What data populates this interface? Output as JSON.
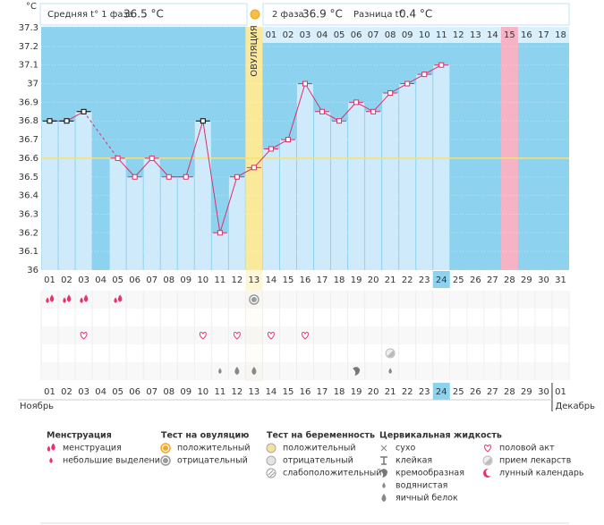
{
  "header": {
    "phase1_label": "Средняя t° 1 фаза",
    "phase1_value": "36.5 °C",
    "phase2_label": "2 фаза",
    "phase2_value": "36.9 °C",
    "diff_label": "Разница t°",
    "diff_value": "0.4 °C"
  },
  "chart_data": {
    "type": "line",
    "y_label": "°C",
    "ylim": [
      36,
      37.3
    ],
    "yticks": [
      36,
      36.1,
      36.2,
      36.3,
      36.4,
      36.5,
      36.6,
      36.7,
      36.8,
      36.9,
      37,
      37.1,
      37.2,
      37.3
    ],
    "categories": [
      "01",
      "02",
      "03",
      "04",
      "05",
      "06",
      "07",
      "08",
      "09",
      "10",
      "11",
      "12",
      "13",
      "14",
      "15",
      "16",
      "17",
      "18",
      "19",
      "20",
      "21",
      "22",
      "23",
      "24",
      "25",
      "26",
      "27",
      "28",
      "29",
      "30",
      "31"
    ],
    "values": [
      36.8,
      36.8,
      36.85,
      null,
      36.6,
      36.5,
      36.6,
      36.5,
      36.5,
      36.8,
      36.2,
      36.5,
      36.55,
      36.65,
      36.7,
      37.0,
      36.85,
      36.8,
      36.9,
      36.85,
      36.95,
      37.0,
      37.05,
      37.1,
      null,
      null,
      null,
      null,
      null,
      null,
      null
    ],
    "excluded": [
      true,
      true,
      true,
      false,
      false,
      false,
      false,
      false,
      false,
      true,
      false,
      false,
      false,
      false,
      false,
      false,
      false,
      false,
      false,
      false,
      false,
      false,
      false,
      false,
      false,
      false,
      false,
      false,
      false,
      false,
      false
    ],
    "color": "#d9306a",
    "excluded_color": "#000000",
    "bar_color": "#cfeafa",
    "background_color": "#8dd3f0",
    "coverline": 36.6,
    "coverline_color": "#f3e27a",
    "ovulation_day": 13,
    "ovulation_label": "ОВУЛЯЦИЯ",
    "ovulation_color": "#fbe99a",
    "cycle_days": [
      "01",
      "02",
      "03",
      "04",
      "05",
      "06",
      "07",
      "08",
      "09",
      "10",
      "11",
      "12",
      "13",
      "14",
      "15",
      "16",
      "17",
      "18"
    ],
    "cycle_start_day": 14,
    "highlight_day": 28,
    "highlight_color": "#f7b3c6",
    "today": 24,
    "grid": true
  },
  "calendar": {
    "dates": [
      "01",
      "02",
      "03",
      "04",
      "05",
      "06",
      "07",
      "08",
      "09",
      "10",
      "11",
      "12",
      "13",
      "14",
      "15",
      "16",
      "17",
      "18",
      "19",
      "20",
      "21",
      "22",
      "23",
      "24",
      "25",
      "26",
      "27",
      "28",
      "29",
      "30",
      "01"
    ],
    "weekend": [
      false,
      true,
      true,
      false,
      false,
      false,
      false,
      false,
      true,
      true,
      false,
      false,
      false,
      false,
      false,
      true,
      true,
      false,
      false,
      false,
      false,
      false,
      true,
      false,
      false,
      false,
      false,
      false,
      false,
      true,
      true
    ],
    "weekend_color": "#d9306a",
    "month_start": "Ноябрь",
    "month_end": "Декабрь"
  },
  "observations": [
    {
      "day": 1,
      "row": 0,
      "group": 0,
      "item": 0
    },
    {
      "day": 2,
      "row": 0,
      "group": 0,
      "item": 0
    },
    {
      "day": 3,
      "row": 0,
      "group": 0,
      "item": 0
    },
    {
      "day": 5,
      "row": 0,
      "group": 0,
      "item": 0
    },
    {
      "day": 13,
      "row": 0,
      "group": 1,
      "item": 1
    },
    {
      "day": 3,
      "row": 2,
      "group": 4,
      "item": 0
    },
    {
      "day": 10,
      "row": 2,
      "group": 4,
      "item": 0
    },
    {
      "day": 12,
      "row": 2,
      "group": 4,
      "item": 0
    },
    {
      "day": 14,
      "row": 2,
      "group": 4,
      "item": 0
    },
    {
      "day": 16,
      "row": 2,
      "group": 4,
      "item": 0
    },
    {
      "day": 21,
      "row": 3,
      "group": 4,
      "item": 1
    },
    {
      "day": 11,
      "row": 4,
      "group": 3,
      "item": 3
    },
    {
      "day": 12,
      "row": 4,
      "group": 3,
      "item": 4
    },
    {
      "day": 13,
      "row": 4,
      "group": 3,
      "item": 4
    },
    {
      "day": 19,
      "row": 4,
      "group": 3,
      "item": 2
    },
    {
      "day": 21,
      "row": 4,
      "group": 3,
      "item": 3
    }
  ],
  "legend": [
    {
      "title": "Менструация",
      "items": [
        {
          "label": "менструация",
          "icon": "drops",
          "color": "#e8336e"
        },
        {
          "label": "небольшие выделения",
          "icon": "drop-small",
          "color": "#e8336e"
        }
      ]
    },
    {
      "title": "Тест на овуляцию",
      "items": [
        {
          "label": "положительный",
          "icon": "circle",
          "color": "#f5a623"
        },
        {
          "label": "отрицательный",
          "icon": "circle",
          "color": "#9a9a9a"
        }
      ]
    },
    {
      "title": "Тест на беременность",
      "items": [
        {
          "label": "положительный",
          "icon": "circle-light",
          "color": "#f0c040"
        },
        {
          "label": "отрицательный",
          "icon": "circle-light",
          "color": "#c8c8c8"
        },
        {
          "label": "слабоположительный",
          "icon": "circle-striped",
          "color": "#9a9a9a"
        }
      ]
    },
    {
      "title": "Цервикальная жидкость",
      "items": [
        {
          "label": "сухо",
          "icon": "cross",
          "color": "#888888"
        },
        {
          "label": "клейкая",
          "icon": "tee",
          "color": "#777777"
        },
        {
          "label": "кремообразная",
          "icon": "cream",
          "color": "#777777"
        },
        {
          "label": "водянистая",
          "icon": "drop-small",
          "color": "#888888"
        },
        {
          "label": "яичный белок",
          "icon": "drop",
          "color": "#888888"
        }
      ]
    },
    {
      "items": [
        {
          "label": "половой акт",
          "icon": "heart",
          "color": "#e8336e"
        },
        {
          "label": "прием лекарств",
          "icon": "pill",
          "color": "#bbbbbb"
        },
        {
          "label": "лунный календарь",
          "icon": "moon",
          "color": "#e8336e"
        }
      ]
    }
  ]
}
